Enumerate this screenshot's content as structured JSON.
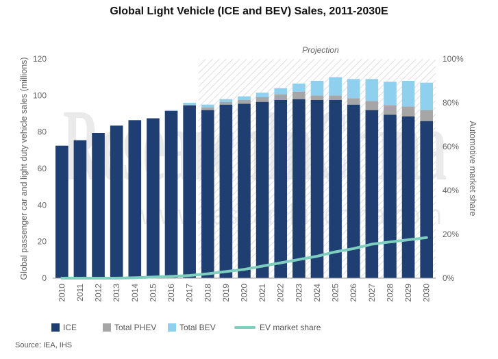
{
  "title": "Global Light Vehicle (ICE and BEV) Sales, 2011-2030E",
  "source": "Source: IEA, IHS",
  "watermark": {
    "main": "ResearchInChina",
    "url": "www.researchinchina.com"
  },
  "colors": {
    "ice": "#1f3f73",
    "phev": "#a6a6a6",
    "bev": "#8fd0ee",
    "ev_share": "#7fcfbf",
    "projection_hatch": "#d8d8d8"
  },
  "chart_data": {
    "type": "bar",
    "stacked": true,
    "title": "Global Light Vehicle (ICE and BEV) Sales, 2011-2030E",
    "ylabel": "Global passenger car and light duty vehicle sales (millions)",
    "y2label": "Automotive market share",
    "ylim": [
      0,
      120
    ],
    "y2lim": [
      0,
      100
    ],
    "yticks": [
      "0",
      "20",
      "40",
      "60",
      "80",
      "100",
      "120"
    ],
    "y2ticks": [
      "0%",
      "20%",
      "40%",
      "60%",
      "80%",
      "100%"
    ],
    "projection_label": "Projection",
    "projection_start": "2018",
    "categories": [
      "2010",
      "2011",
      "2012",
      "2013",
      "2014",
      "2015",
      "2016",
      "2017",
      "2018",
      "2019",
      "2020",
      "2021",
      "2022",
      "2023",
      "2024",
      "2025",
      "2026",
      "2027",
      "2028",
      "2029",
      "2030"
    ],
    "series": [
      {
        "name": "ICE",
        "kind": "bar",
        "values": [
          72.5,
          75.5,
          79.5,
          83.5,
          86.5,
          87.5,
          91.5,
          94.5,
          92,
          95,
          95.5,
          96.5,
          97.5,
          98,
          97.5,
          97.5,
          95,
          92,
          89.5,
          88.5,
          86
        ]
      },
      {
        "name": "Total PHEV",
        "kind": "bar",
        "values": [
          0,
          0,
          0,
          0,
          0,
          0,
          0,
          0.5,
          1.5,
          1.5,
          2,
          2.5,
          3,
          4,
          2.5,
          2.5,
          3.5,
          5,
          5,
          5.5,
          6
        ]
      },
      {
        "name": "Total BEV",
        "kind": "bar",
        "values": [
          0,
          0,
          0,
          0,
          0,
          0,
          0.5,
          1,
          1.5,
          1.5,
          2,
          2.5,
          3.5,
          4.5,
          8,
          10,
          10.5,
          12,
          13,
          14,
          15
        ]
      },
      {
        "name": "EV market share",
        "kind": "line",
        "axis": "right",
        "values": [
          0,
          0,
          0,
          0,
          0.2,
          0.5,
          0.8,
          1.2,
          2,
          3,
          4,
          5.5,
          7,
          8.5,
          10,
          12,
          13.5,
          15.5,
          16.5,
          17.5,
          18.5
        ]
      }
    ],
    "legend_position": "bottom"
  }
}
